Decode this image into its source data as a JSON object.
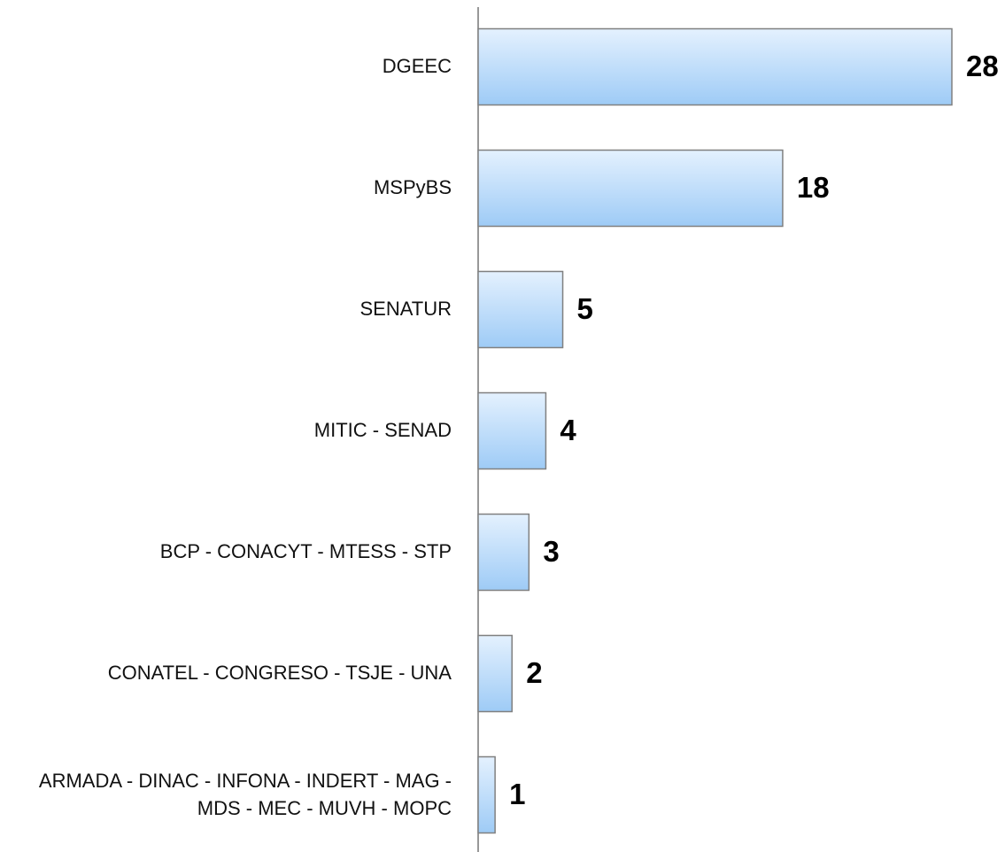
{
  "chart_data": {
    "type": "bar",
    "orientation": "horizontal",
    "categories": [
      "DGEEC",
      "MSPyBS",
      "SENATUR",
      "MITIC - SENAD",
      "BCP - CONACYT - MTESS - STP",
      "CONATEL - CONGRESO - TSJE - UNA",
      "ARMADA - DINAC - INFONA - INDERT - MAG - MDS - MEC - MUVH - MOPC"
    ],
    "values": [
      28,
      18,
      5,
      4,
      3,
      2,
      1
    ],
    "color": "#9ecbf6"
  }
}
